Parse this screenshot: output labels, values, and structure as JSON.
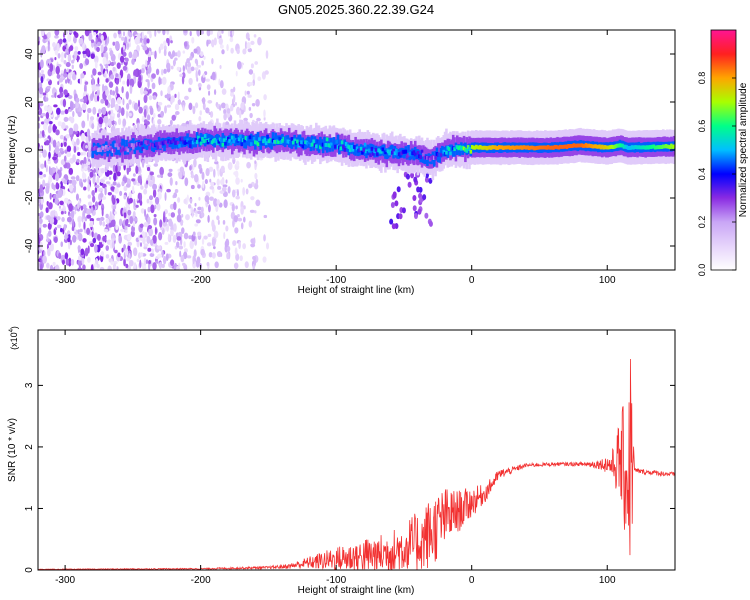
{
  "figure_title": "GN05.2025.360.22.39.G24",
  "colors": {
    "snr_line": "#f23030",
    "spectral_ramp": [
      "#ffffff",
      "#e6d4fb",
      "#c9a6f6",
      "#8a2be2",
      "#0000ff",
      "#00bfff",
      "#00ff88",
      "#a8ff00",
      "#ffa500",
      "#ff2020",
      "#ff1493"
    ]
  },
  "chart_data": [
    {
      "type": "heatmap",
      "title": "GN05.2025.360.22.39.G24",
      "xlabel": "Height of straight line (km)",
      "ylabel": "Frequency (Hz)",
      "xlim": [
        -320,
        150
      ],
      "ylim": [
        -50,
        50
      ],
      "xticks": [
        -300,
        -200,
        -100,
        0,
        100
      ],
      "yticks": [
        -40,
        -20,
        0,
        20,
        40
      ],
      "colorbar": {
        "label": "Normalized spectral amplitude",
        "range": [
          0,
          1
        ],
        "ticks": [
          0.0,
          0.2,
          0.4,
          0.6,
          0.8
        ]
      },
      "ridge": {
        "description_points_x": [
          -275,
          -250,
          -200,
          -150,
          -100,
          -80,
          -60,
          -40,
          -30,
          -20,
          0,
          20,
          60,
          80,
          100,
          110,
          115,
          150
        ],
        "frequency_hz": [
          0.5,
          1.5,
          4,
          4,
          2,
          0,
          -1,
          -2,
          -4,
          0,
          1,
          1,
          1,
          2,
          1,
          2,
          1,
          1.5
        ],
        "peak_amplitude": [
          0.3,
          0.35,
          0.55,
          0.6,
          0.55,
          0.5,
          0.5,
          0.45,
          0.3,
          0.55,
          0.7,
          0.8,
          0.85,
          0.85,
          0.75,
          0.6,
          0.5,
          0.7
        ]
      },
      "grid": false
    },
    {
      "type": "line",
      "xlabel": "Height of straight line (km)",
      "ylabel": "SNR (10 * v/v)",
      "y_multiplier_label": "(x10",
      "y_multiplier_exponent": "4",
      "y_multiplier_close": ")",
      "xlim": [
        -320,
        150
      ],
      "ylim": [
        0,
        3.9
      ],
      "xticks": [
        -300,
        -200,
        -100,
        0,
        100
      ],
      "yticks": [
        0,
        1,
        2,
        3
      ],
      "envelope": {
        "x": [
          -320,
          -200,
          -150,
          -135,
          -120,
          -100,
          -80,
          -60,
          -40,
          -30,
          -20,
          -10,
          0,
          10,
          20,
          40,
          60,
          80,
          95,
          100,
          105,
          110,
          115,
          117,
          118,
          120,
          125,
          150
        ],
        "mean": [
          0.01,
          0.02,
          0.04,
          0.06,
          0.12,
          0.18,
          0.22,
          0.28,
          0.45,
          0.6,
          0.85,
          0.95,
          1.1,
          1.25,
          1.55,
          1.7,
          1.72,
          1.72,
          1.72,
          1.72,
          1.7,
          1.8,
          1.5,
          1.8,
          2.0,
          1.62,
          1.6,
          1.55
        ],
        "noise": [
          0.005,
          0.01,
          0.02,
          0.04,
          0.1,
          0.2,
          0.3,
          0.35,
          0.5,
          0.6,
          0.5,
          0.35,
          0.25,
          0.15,
          0.08,
          0.03,
          0.03,
          0.03,
          0.08,
          0.15,
          0.3,
          0.8,
          1.3,
          1.9,
          1.8,
          0.05,
          0.04,
          0.04
        ]
      },
      "grid": false
    }
  ]
}
